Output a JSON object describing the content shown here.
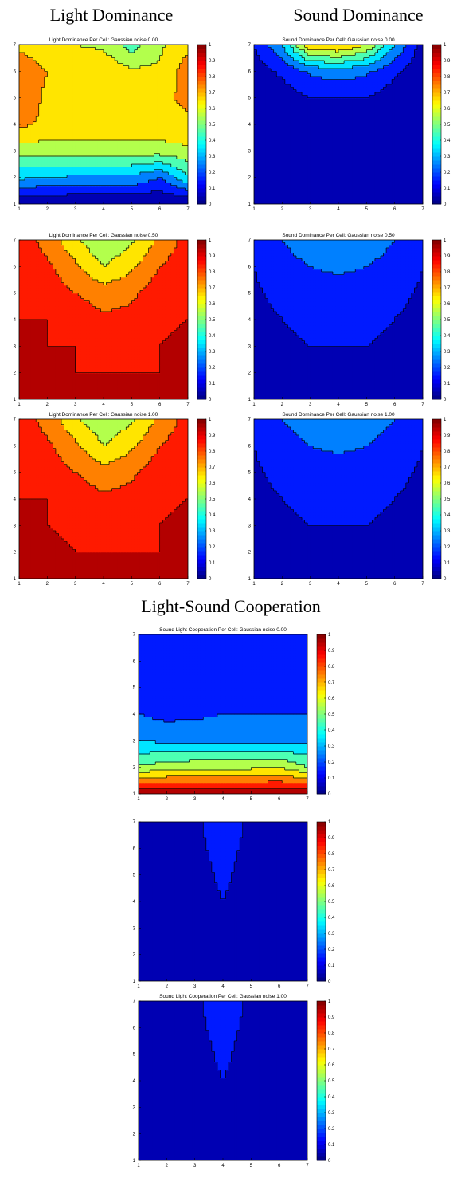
{
  "headers": {
    "light": "Light Dominance",
    "sound": "Sound Dominance",
    "coop": "Light-Sound Cooperation"
  },
  "colorbar": {
    "ticks": [
      0,
      0.1,
      0.2,
      0.3,
      0.4,
      0.5,
      0.6,
      0.7,
      0.8,
      0.9,
      1
    ],
    "colormap": "jet"
  },
  "chart_data": [
    {
      "id": "light0",
      "type": "heatmap",
      "subtype": "contour",
      "title": "Light Dominance Per Cell: Gaussian noise 0.00",
      "x": [
        1,
        2,
        3,
        4,
        5,
        6,
        7
      ],
      "y": [
        1,
        2,
        3,
        4,
        5,
        6,
        7
      ],
      "xlim": [
        1,
        7
      ],
      "ylim": [
        1,
        7
      ],
      "clim": [
        0,
        1
      ],
      "z": [
        [
          0.0,
          0.0,
          0.0,
          0.0,
          0.0,
          0.0,
          0.0
        ],
        [
          0.32,
          0.3,
          0.28,
          0.28,
          0.28,
          0.2,
          0.38
        ],
        [
          0.55,
          0.55,
          0.55,
          0.55,
          0.55,
          0.55,
          0.58
        ],
        [
          0.72,
          0.68,
          0.68,
          0.68,
          0.68,
          0.68,
          0.68
        ],
        [
          0.77,
          0.68,
          0.68,
          0.68,
          0.68,
          0.68,
          0.72
        ],
        [
          0.77,
          0.7,
          0.68,
          0.68,
          0.62,
          0.62,
          0.75
        ],
        [
          0.68,
          0.62,
          0.6,
          0.58,
          0.45,
          0.58,
          0.68
        ]
      ]
    },
    {
      "id": "sound0",
      "type": "heatmap",
      "subtype": "contour",
      "title": "Sound Dominance Per Cell: Gaussian noise 0.00",
      "x": [
        1,
        2,
        3,
        4,
        5,
        6,
        7
      ],
      "y": [
        1,
        2,
        3,
        4,
        5,
        6,
        7
      ],
      "xlim": [
        1,
        7
      ],
      "ylim": [
        1,
        7
      ],
      "clim": [
        0,
        1
      ],
      "z": [
        [
          0.0,
          0.0,
          0.0,
          0.0,
          0.0,
          0.0,
          0.0
        ],
        [
          0.0,
          0.0,
          0.0,
          0.0,
          0.0,
          0.0,
          0.0
        ],
        [
          0.0,
          0.0,
          0.0,
          0.0,
          0.0,
          0.0,
          0.0
        ],
        [
          0.0,
          0.0,
          0.02,
          0.02,
          0.02,
          0.0,
          0.0
        ],
        [
          0.03,
          0.05,
          0.1,
          0.1,
          0.1,
          0.05,
          0.0
        ],
        [
          0.05,
          0.12,
          0.22,
          0.25,
          0.22,
          0.12,
          0.03
        ],
        [
          0.1,
          0.3,
          0.7,
          0.72,
          0.6,
          0.3,
          0.05
        ]
      ]
    },
    {
      "id": "light50",
      "type": "heatmap",
      "subtype": "contour",
      "title": "Light Dominance Per Cell: Gaussian noise 0.50",
      "x": [
        1,
        2,
        3,
        4,
        5,
        6,
        7
      ],
      "y": [
        1,
        2,
        3,
        4,
        5,
        6,
        7
      ],
      "xlim": [
        1,
        7
      ],
      "ylim": [
        1,
        7
      ],
      "clim": [
        0,
        1
      ],
      "z": [
        [
          0.97,
          0.94,
          0.9,
          0.9,
          0.9,
          0.9,
          0.92
        ],
        [
          0.95,
          0.92,
          0.9,
          0.9,
          0.9,
          0.9,
          0.92
        ],
        [
          0.92,
          0.9,
          0.9,
          0.87,
          0.88,
          0.9,
          0.92
        ],
        [
          0.9,
          0.9,
          0.86,
          0.82,
          0.83,
          0.88,
          0.9
        ],
        [
          0.9,
          0.86,
          0.8,
          0.75,
          0.78,
          0.86,
          0.9
        ],
        [
          0.88,
          0.82,
          0.72,
          0.6,
          0.68,
          0.8,
          0.86
        ],
        [
          0.86,
          0.76,
          0.62,
          0.5,
          0.58,
          0.72,
          0.84
        ]
      ]
    },
    {
      "id": "sound50",
      "type": "heatmap",
      "subtype": "contour",
      "title": "Sound Dominance Per Cell: Gaussian noise 0.50",
      "x": [
        1,
        2,
        3,
        4,
        5,
        6,
        7
      ],
      "y": [
        1,
        2,
        3,
        4,
        5,
        6,
        7
      ],
      "xlim": [
        1,
        7
      ],
      "ylim": [
        1,
        7
      ],
      "clim": [
        0,
        1
      ],
      "z": [
        [
          0.02,
          0.03,
          0.05,
          0.05,
          0.06,
          0.05,
          0.03
        ],
        [
          0.05,
          0.06,
          0.08,
          0.1,
          0.07,
          0.06,
          0.05
        ],
        [
          0.07,
          0.08,
          0.1,
          0.1,
          0.1,
          0.08,
          0.07
        ],
        [
          0.08,
          0.1,
          0.12,
          0.12,
          0.12,
          0.1,
          0.08
        ],
        [
          0.09,
          0.12,
          0.15,
          0.15,
          0.15,
          0.12,
          0.09
        ],
        [
          0.1,
          0.15,
          0.2,
          0.22,
          0.2,
          0.15,
          0.1
        ],
        [
          0.12,
          0.2,
          0.28,
          0.3,
          0.28,
          0.2,
          0.12
        ]
      ]
    },
    {
      "id": "light100",
      "type": "heatmap",
      "subtype": "contour",
      "title": "Light Dominance Per Cell: Gaussian noise 1.00",
      "x": [
        1,
        2,
        3,
        4,
        5,
        6,
        7
      ],
      "y": [
        1,
        2,
        3,
        4,
        5,
        6,
        7
      ],
      "xlim": [
        1,
        7
      ],
      "ylim": [
        1,
        7
      ],
      "clim": [
        0,
        1
      ],
      "z": [
        [
          0.96,
          0.92,
          0.9,
          0.9,
          0.9,
          0.9,
          0.92
        ],
        [
          0.95,
          0.91,
          0.9,
          0.9,
          0.9,
          0.9,
          0.92
        ],
        [
          0.92,
          0.9,
          0.89,
          0.88,
          0.89,
          0.9,
          0.92
        ],
        [
          0.9,
          0.9,
          0.86,
          0.82,
          0.84,
          0.88,
          0.9
        ],
        [
          0.9,
          0.86,
          0.8,
          0.74,
          0.78,
          0.86,
          0.9
        ],
        [
          0.88,
          0.82,
          0.72,
          0.6,
          0.68,
          0.8,
          0.86
        ],
        [
          0.86,
          0.76,
          0.62,
          0.52,
          0.58,
          0.72,
          0.84
        ]
      ]
    },
    {
      "id": "sound100",
      "type": "heatmap",
      "subtype": "contour",
      "title": "Sound Dominance Per Cell: Gaussian noise 1.00",
      "x": [
        1,
        2,
        3,
        4,
        5,
        6,
        7
      ],
      "y": [
        1,
        2,
        3,
        4,
        5,
        6,
        7
      ],
      "xlim": [
        1,
        7
      ],
      "ylim": [
        1,
        7
      ],
      "clim": [
        0,
        1
      ],
      "z": [
        [
          0.03,
          0.04,
          0.06,
          0.06,
          0.05,
          0.04,
          0.03
        ],
        [
          0.05,
          0.06,
          0.08,
          0.09,
          0.08,
          0.06,
          0.05
        ],
        [
          0.07,
          0.08,
          0.1,
          0.1,
          0.1,
          0.08,
          0.07
        ],
        [
          0.08,
          0.1,
          0.12,
          0.12,
          0.12,
          0.1,
          0.08
        ],
        [
          0.09,
          0.12,
          0.15,
          0.15,
          0.15,
          0.12,
          0.09
        ],
        [
          0.1,
          0.15,
          0.2,
          0.22,
          0.2,
          0.15,
          0.1
        ],
        [
          0.12,
          0.2,
          0.27,
          0.3,
          0.27,
          0.2,
          0.12
        ]
      ]
    },
    {
      "id": "coop0",
      "type": "heatmap",
      "subtype": "contour",
      "title": "Sound Light Cooperation Per Cell: Gaussian noise 0.00",
      "x": [
        1,
        2,
        3,
        4,
        5,
        6,
        7
      ],
      "y": [
        1,
        2,
        3,
        4,
        5,
        6,
        7
      ],
      "xlim": [
        1,
        7
      ],
      "ylim": [
        1,
        7
      ],
      "clim": [
        0,
        1
      ],
      "z": [
        [
          0.98,
          0.98,
          0.97,
          0.97,
          0.97,
          0.97,
          0.98
        ],
        [
          0.52,
          0.55,
          0.58,
          0.58,
          0.58,
          0.6,
          0.5
        ],
        [
          0.3,
          0.28,
          0.28,
          0.28,
          0.28,
          0.28,
          0.28
        ],
        [
          0.2,
          0.17,
          0.18,
          0.2,
          0.2,
          0.2,
          0.2
        ],
        [
          0.12,
          0.12,
          0.15,
          0.17,
          0.18,
          0.18,
          0.17
        ],
        [
          0.12,
          0.12,
          0.14,
          0.17,
          0.19,
          0.18,
          0.15
        ],
        [
          0.12,
          0.12,
          0.14,
          0.17,
          0.2,
          0.18,
          0.15
        ]
      ]
    },
    {
      "id": "coop50",
      "type": "heatmap",
      "subtype": "contour",
      "title": "",
      "x": [
        1,
        2,
        3,
        4,
        5,
        6,
        7
      ],
      "y": [
        1,
        2,
        3,
        4,
        5,
        6,
        7
      ],
      "xlim": [
        1,
        7
      ],
      "ylim": [
        1,
        7
      ],
      "clim": [
        0,
        1
      ],
      "z": [
        [
          0.02,
          0.02,
          0.03,
          0.05,
          0.03,
          0.02,
          0.02
        ],
        [
          0.02,
          0.03,
          0.04,
          0.06,
          0.04,
          0.03,
          0.02
        ],
        [
          0.02,
          0.03,
          0.05,
          0.08,
          0.05,
          0.03,
          0.02
        ],
        [
          0.03,
          0.03,
          0.05,
          0.1,
          0.05,
          0.03,
          0.03
        ],
        [
          0.03,
          0.04,
          0.06,
          0.12,
          0.06,
          0.04,
          0.03
        ],
        [
          0.03,
          0.04,
          0.07,
          0.14,
          0.07,
          0.04,
          0.03
        ],
        [
          0.03,
          0.05,
          0.08,
          0.16,
          0.08,
          0.05,
          0.03
        ]
      ]
    },
    {
      "id": "coop100",
      "type": "heatmap",
      "subtype": "contour",
      "title": "Sound Light Cooperation Per Cell: Gaussian noise 1.00",
      "x": [
        1,
        2,
        3,
        4,
        5,
        6,
        7
      ],
      "y": [
        1,
        2,
        3,
        4,
        5,
        6,
        7
      ],
      "xlim": [
        1,
        7
      ],
      "ylim": [
        1,
        7
      ],
      "clim": [
        0,
        1
      ],
      "z": [
        [
          0.02,
          0.02,
          0.03,
          0.05,
          0.03,
          0.02,
          0.02
        ],
        [
          0.02,
          0.03,
          0.04,
          0.06,
          0.04,
          0.03,
          0.02
        ],
        [
          0.02,
          0.03,
          0.05,
          0.08,
          0.05,
          0.03,
          0.02
        ],
        [
          0.03,
          0.03,
          0.05,
          0.1,
          0.05,
          0.03,
          0.03
        ],
        [
          0.03,
          0.04,
          0.06,
          0.12,
          0.06,
          0.04,
          0.03
        ],
        [
          0.03,
          0.04,
          0.07,
          0.14,
          0.07,
          0.04,
          0.03
        ],
        [
          0.03,
          0.05,
          0.08,
          0.16,
          0.08,
          0.05,
          0.03
        ]
      ]
    }
  ]
}
